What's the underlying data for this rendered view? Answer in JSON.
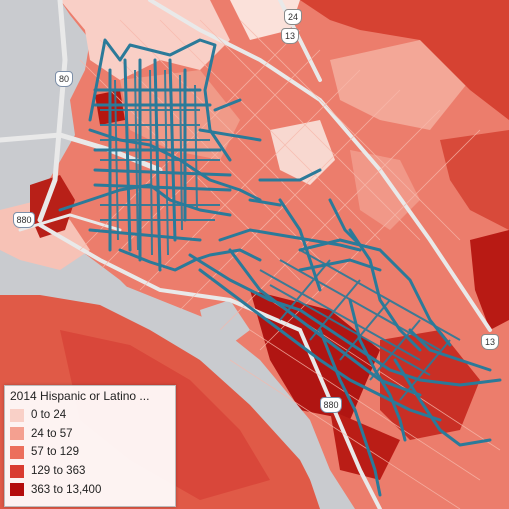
{
  "legend": {
    "title": "2014 Hispanic or Latino ...",
    "items": [
      {
        "label": "0 to 24",
        "color": "#f9d0c7"
      },
      {
        "label": "24 to 57",
        "color": "#f4a090"
      },
      {
        "label": "57 to 129",
        "color": "#ec6f5c"
      },
      {
        "label": "129 to 363",
        "color": "#d93b30"
      },
      {
        "label": "363 to 13,400",
        "color": "#b30c0c"
      }
    ]
  },
  "shields": [
    {
      "id": "24",
      "label": "24",
      "type": "state"
    },
    {
      "id": "13a",
      "label": "13",
      "type": "state"
    },
    {
      "id": "80",
      "label": "80",
      "type": "interstate"
    },
    {
      "id": "880",
      "label": "880",
      "type": "interstate"
    },
    {
      "id": "13b",
      "label": "13",
      "type": "state"
    },
    {
      "id": "880b",
      "label": "880",
      "type": "interstate"
    }
  ],
  "overlay_color": "#2b7a99",
  "water_color": "#c9cbcf"
}
